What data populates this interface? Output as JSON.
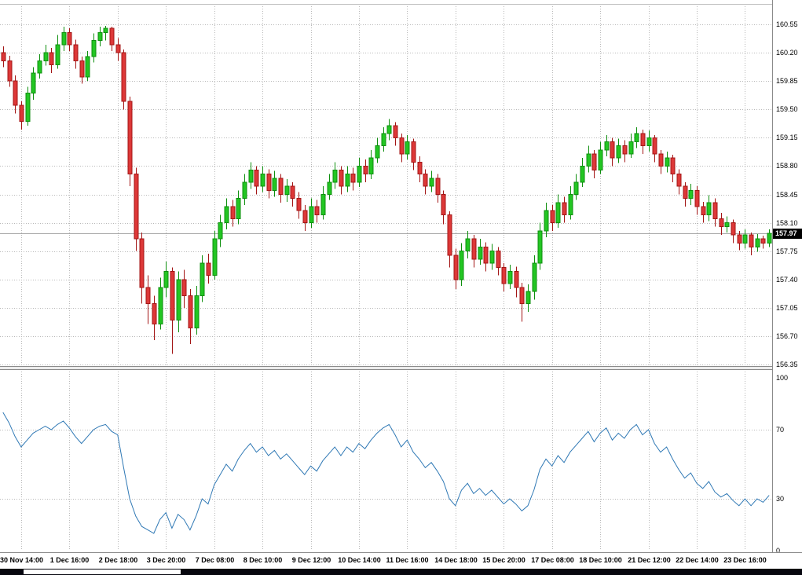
{
  "chart_data": {
    "type": "candlestick",
    "title": "",
    "x_labels": [
      "30 Nov 14:00",
      "1 Dec 16:00",
      "2 Dec 18:00",
      "3 Dec 20:00",
      "7 Dec 08:00",
      "8 Dec 10:00",
      "9 Dec 12:00",
      "10 Dec 14:00",
      "11 Dec 16:00",
      "14 Dec 18:00",
      "15 Dec 20:00",
      "17 Dec 08:00",
      "18 Dec 10:00",
      "21 Dec 12:00",
      "22 Dec 14:00",
      "23 Dec 16:00"
    ],
    "y_tick_labels": [
      "160.55",
      "160.20",
      "159.85",
      "159.50",
      "159.15",
      "158.80",
      "158.45",
      "158.10",
      "157.75",
      "157.40",
      "157.05",
      "156.70",
      "156.35"
    ],
    "ylim": [
      156.35,
      160.55
    ],
    "y_tick_step": 0.35,
    "current_price": 157.97,
    "current_price_label": "157.97",
    "candles": [
      [
        160.2,
        160.28,
        160.02,
        160.1
      ],
      [
        160.1,
        160.16,
        159.78,
        159.85
      ],
      [
        159.85,
        159.92,
        159.45,
        159.55
      ],
      [
        159.55,
        159.6,
        159.25,
        159.35
      ],
      [
        159.35,
        159.78,
        159.3,
        159.7
      ],
      [
        159.7,
        160.02,
        159.62,
        159.95
      ],
      [
        159.95,
        160.18,
        159.88,
        160.1
      ],
      [
        160.1,
        160.3,
        160.04,
        160.2
      ],
      [
        160.2,
        160.26,
        159.95,
        160.05
      ],
      [
        160.05,
        160.42,
        160.0,
        160.3
      ],
      [
        160.3,
        160.52,
        160.22,
        160.45
      ],
      [
        160.45,
        160.5,
        160.22,
        160.3
      ],
      [
        160.3,
        160.36,
        160.0,
        160.1
      ],
      [
        160.1,
        160.15,
        159.82,
        159.9
      ],
      [
        159.9,
        160.22,
        159.85,
        160.15
      ],
      [
        160.15,
        160.44,
        160.08,
        160.35
      ],
      [
        160.35,
        160.52,
        160.28,
        160.45
      ],
      [
        160.45,
        160.53,
        160.35,
        160.5
      ],
      [
        160.5,
        160.52,
        160.22,
        160.3
      ],
      [
        160.3,
        160.38,
        160.1,
        160.2
      ],
      [
        160.2,
        160.24,
        159.5,
        159.6
      ],
      [
        159.6,
        159.66,
        158.55,
        158.7
      ],
      [
        158.7,
        158.78,
        157.75,
        157.9
      ],
      [
        157.9,
        157.98,
        157.1,
        157.3
      ],
      [
        157.3,
        157.45,
        156.85,
        157.1
      ],
      [
        157.1,
        157.2,
        156.65,
        156.85
      ],
      [
        156.85,
        157.42,
        156.78,
        157.3
      ],
      [
        157.3,
        157.62,
        157.18,
        157.5
      ],
      [
        157.5,
        157.55,
        156.48,
        156.9
      ],
      [
        156.9,
        157.5,
        156.75,
        157.4
      ],
      [
        157.4,
        157.52,
        157.05,
        157.2
      ],
      [
        157.2,
        157.28,
        156.6,
        156.8
      ],
      [
        156.8,
        157.32,
        156.72,
        157.2
      ],
      [
        157.2,
        157.7,
        157.12,
        157.6
      ],
      [
        157.6,
        157.72,
        157.35,
        157.45
      ],
      [
        157.45,
        158.0,
        157.4,
        157.9
      ],
      [
        157.9,
        158.2,
        157.8,
        158.1
      ],
      [
        158.1,
        158.4,
        158.02,
        158.3
      ],
      [
        158.3,
        158.38,
        158.05,
        158.15
      ],
      [
        158.15,
        158.5,
        158.08,
        158.4
      ],
      [
        158.4,
        158.7,
        158.32,
        158.6
      ],
      [
        158.6,
        158.85,
        158.52,
        158.75
      ],
      [
        158.75,
        158.8,
        158.45,
        158.55
      ],
      [
        158.55,
        158.8,
        158.48,
        158.7
      ],
      [
        158.7,
        158.76,
        158.4,
        158.5
      ],
      [
        158.5,
        158.74,
        158.42,
        158.65
      ],
      [
        158.65,
        158.7,
        158.35,
        158.45
      ],
      [
        158.45,
        158.64,
        158.36,
        158.55
      ],
      [
        158.55,
        158.6,
        158.3,
        158.4
      ],
      [
        158.4,
        158.48,
        158.15,
        158.25
      ],
      [
        158.25,
        158.32,
        158.0,
        158.1
      ],
      [
        158.1,
        158.4,
        158.04,
        158.3
      ],
      [
        158.3,
        158.38,
        158.1,
        158.2
      ],
      [
        158.2,
        158.55,
        158.14,
        158.45
      ],
      [
        158.45,
        158.7,
        158.38,
        158.6
      ],
      [
        158.6,
        158.85,
        158.52,
        158.75
      ],
      [
        158.75,
        158.8,
        158.45,
        158.55
      ],
      [
        158.55,
        158.8,
        158.48,
        158.7
      ],
      [
        158.7,
        158.78,
        158.5,
        158.6
      ],
      [
        158.6,
        158.9,
        158.54,
        158.8
      ],
      [
        158.8,
        158.88,
        158.6,
        158.7
      ],
      [
        158.7,
        159.0,
        158.64,
        158.9
      ],
      [
        158.9,
        159.15,
        158.84,
        159.05
      ],
      [
        159.05,
        159.28,
        158.98,
        159.2
      ],
      [
        159.2,
        159.38,
        159.12,
        159.3
      ],
      [
        159.3,
        159.34,
        159.05,
        159.15
      ],
      [
        159.15,
        159.2,
        158.85,
        158.95
      ],
      [
        158.95,
        159.18,
        158.88,
        159.1
      ],
      [
        159.1,
        159.14,
        158.75,
        158.85
      ],
      [
        158.85,
        158.92,
        158.6,
        158.7
      ],
      [
        158.7,
        158.76,
        158.45,
        158.55
      ],
      [
        158.55,
        158.74,
        158.48,
        158.65
      ],
      [
        158.65,
        158.7,
        158.35,
        158.45
      ],
      [
        158.45,
        158.5,
        158.08,
        158.2
      ],
      [
        158.2,
        158.24,
        157.55,
        157.7
      ],
      [
        157.7,
        157.78,
        157.28,
        157.4
      ],
      [
        157.4,
        157.85,
        157.32,
        157.75
      ],
      [
        157.75,
        158.0,
        157.66,
        157.9
      ],
      [
        157.9,
        157.95,
        157.55,
        157.65
      ],
      [
        157.65,
        157.9,
        157.58,
        157.8
      ],
      [
        157.8,
        157.86,
        157.5,
        157.6
      ],
      [
        157.6,
        157.84,
        157.52,
        157.75
      ],
      [
        157.75,
        157.8,
        157.45,
        157.55
      ],
      [
        157.55,
        157.6,
        157.25,
        157.35
      ],
      [
        157.35,
        157.58,
        157.28,
        157.5
      ],
      [
        157.5,
        157.56,
        157.18,
        157.3
      ],
      [
        157.3,
        157.36,
        156.88,
        157.1
      ],
      [
        157.1,
        157.34,
        157.0,
        157.25
      ],
      [
        157.25,
        157.7,
        157.15,
        157.6
      ],
      [
        157.6,
        158.1,
        157.52,
        158.0
      ],
      [
        158.0,
        158.35,
        157.92,
        158.25
      ],
      [
        158.25,
        158.32,
        158.0,
        158.1
      ],
      [
        158.1,
        158.45,
        158.04,
        158.35
      ],
      [
        158.35,
        158.42,
        158.1,
        158.2
      ],
      [
        158.2,
        158.55,
        158.14,
        158.45
      ],
      [
        158.45,
        158.7,
        158.38,
        158.6
      ],
      [
        158.6,
        158.9,
        158.54,
        158.8
      ],
      [
        158.8,
        159.05,
        158.72,
        158.95
      ],
      [
        158.95,
        159.0,
        158.65,
        158.75
      ],
      [
        158.75,
        159.1,
        158.7,
        159.0
      ],
      [
        159.0,
        159.18,
        158.92,
        159.1
      ],
      [
        159.1,
        159.15,
        158.8,
        158.9
      ],
      [
        158.9,
        159.14,
        158.84,
        159.05
      ],
      [
        159.05,
        159.12,
        158.85,
        158.95
      ],
      [
        158.95,
        159.2,
        158.9,
        159.1
      ],
      [
        159.1,
        159.28,
        159.02,
        159.2
      ],
      [
        159.2,
        159.25,
        158.95,
        159.05
      ],
      [
        159.05,
        159.24,
        158.98,
        159.15
      ],
      [
        159.15,
        159.18,
        158.85,
        158.95
      ],
      [
        158.95,
        159.0,
        158.7,
        158.8
      ],
      [
        158.8,
        158.98,
        158.72,
        158.9
      ],
      [
        158.9,
        158.94,
        158.6,
        158.7
      ],
      [
        158.7,
        158.76,
        158.45,
        158.55
      ],
      [
        158.55,
        158.6,
        158.3,
        158.4
      ],
      [
        158.4,
        158.58,
        158.32,
        158.5
      ],
      [
        158.5,
        158.55,
        158.2,
        158.3
      ],
      [
        158.3,
        158.36,
        158.1,
        158.2
      ],
      [
        158.2,
        158.44,
        158.12,
        158.35
      ],
      [
        158.35,
        158.4,
        158.05,
        158.15
      ],
      [
        158.15,
        158.22,
        157.95,
        158.05
      ],
      [
        158.05,
        158.18,
        157.98,
        158.1
      ],
      [
        158.1,
        158.14,
        157.85,
        157.95
      ],
      [
        157.95,
        158.0,
        157.76,
        157.85
      ],
      [
        157.85,
        158.02,
        157.78,
        157.95
      ],
      [
        157.95,
        157.98,
        157.7,
        157.8
      ],
      [
        157.8,
        157.96,
        157.74,
        157.9
      ],
      [
        157.9,
        157.94,
        157.78,
        157.85
      ],
      [
        157.85,
        158.02,
        157.8,
        157.97
      ]
    ],
    "indicator": {
      "type": "line",
      "ylim": [
        0,
        100
      ],
      "levels": [
        30,
        70
      ],
      "axis_labels": [
        "100",
        "70",
        "30",
        "0"
      ],
      "axis_label_values": [
        100,
        70,
        30,
        0
      ],
      "values": [
        80,
        74,
        66,
        60,
        64,
        68,
        70,
        72,
        70,
        73,
        75,
        71,
        66,
        62,
        66,
        70,
        72,
        73,
        69,
        67,
        48,
        30,
        20,
        14,
        12,
        10,
        18,
        22,
        13,
        21,
        18,
        12,
        20,
        30,
        27,
        38,
        44,
        50,
        46,
        53,
        58,
        62,
        57,
        60,
        55,
        58,
        53,
        56,
        52,
        48,
        44,
        49,
        46,
        52,
        56,
        60,
        55,
        60,
        57,
        62,
        59,
        64,
        68,
        71,
        73,
        67,
        60,
        64,
        57,
        53,
        48,
        51,
        46,
        40,
        30,
        26,
        35,
        39,
        33,
        36,
        32,
        35,
        31,
        27,
        30,
        27,
        23,
        26,
        35,
        47,
        53,
        49,
        55,
        51,
        57,
        61,
        65,
        69,
        63,
        68,
        71,
        64,
        68,
        65,
        70,
        73,
        67,
        70,
        62,
        57,
        60,
        53,
        47,
        42,
        45,
        39,
        36,
        40,
        34,
        31,
        33,
        29,
        26,
        30,
        26,
        30,
        28,
        32
      ]
    },
    "colors": {
      "bull_fill": "#23c623",
      "bull_stroke": "#0e8f0e",
      "bear_fill": "#dd3838",
      "bear_stroke": "#a31515",
      "grid": "#b8b8b8",
      "indicator_line": "#3079b5",
      "current_price_line": "#a6a6a6",
      "badge_bg": "#000000",
      "badge_text": "#ffffff"
    }
  }
}
